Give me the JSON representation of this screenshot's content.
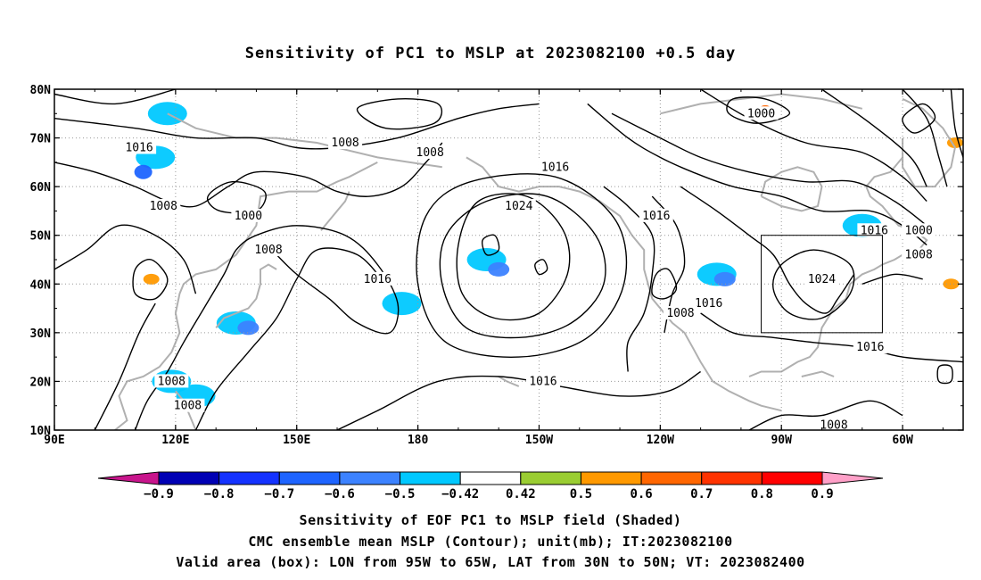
{
  "title": "Sensitivity of PC1 to MSLP at 2023082100 +0.5 day",
  "chart_data": {
    "type": "heatmap",
    "title": "Sensitivity of PC1 to MSLP at 2023082100 +0.5 day",
    "x_ticks": [
      "90E",
      "120E",
      "150E",
      "180",
      "150W",
      "120W",
      "90W",
      "60W"
    ],
    "y_ticks": [
      "10N",
      "20N",
      "30N",
      "40N",
      "50N",
      "60N",
      "70N",
      "80N"
    ],
    "xlim_lon_east": [
      90,
      315
    ],
    "ylim_lat": [
      10,
      80
    ],
    "grid": "dotted",
    "colorbar": {
      "bins": [
        "-0.9",
        "-0.8",
        "-0.7",
        "-0.6",
        "-0.5",
        "-0.42",
        "0.42",
        "0.5",
        "0.6",
        "0.7",
        "0.8",
        "0.9"
      ],
      "colors": [
        "#c8158c",
        "#0000b4",
        "#1432ff",
        "#1e64ff",
        "#3c82ff",
        "#00c8ff",
        "#ffffff",
        "#9acd32",
        "#ff9900",
        "#ff6600",
        "#ff3300",
        "#ff0000",
        "#ffa0c8"
      ]
    },
    "contour_labels": [
      {
        "text": "1016",
        "lon": 111,
        "lat": 68
      },
      {
        "text": "1008",
        "lon": 162,
        "lat": 69
      },
      {
        "text": "1008",
        "lon": 183,
        "lat": 67
      },
      {
        "text": "1016",
        "lon": 214,
        "lat": 64
      },
      {
        "text": "1000",
        "lon": 265,
        "lat": 75
      },
      {
        "text": "1008",
        "lon": 117,
        "lat": 56
      },
      {
        "text": "1000",
        "lon": 138,
        "lat": 54
      },
      {
        "text": "1024",
        "lon": 205,
        "lat": 56
      },
      {
        "text": "1016",
        "lon": 239,
        "lat": 54
      },
      {
        "text": "1008",
        "lon": 143,
        "lat": 47
      },
      {
        "text": "1016",
        "lon": 170,
        "lat": 41
      },
      {
        "text": "1016",
        "lon": 293,
        "lat": 51
      },
      {
        "text": "1000",
        "lon": 304,
        "lat": 51
      },
      {
        "text": "1008",
        "lon": 304,
        "lat": 46
      },
      {
        "text": "1024",
        "lon": 280,
        "lat": 41
      },
      {
        "text": "1016",
        "lon": 252,
        "lat": 36
      },
      {
        "text": "1008",
        "lon": 245,
        "lat": 34
      },
      {
        "text": "1016",
        "lon": 292,
        "lat": 27
      },
      {
        "text": "1008",
        "lon": 119,
        "lat": 20
      },
      {
        "text": "1008",
        "lon": 123,
        "lat": 15
      },
      {
        "text": "1016",
        "lon": 211,
        "lat": 20
      },
      {
        "text": "1008",
        "lon": 283,
        "lat": 11
      }
    ],
    "shaded_regions": [
      {
        "value": -0.5,
        "lon": 115,
        "lat": 66
      },
      {
        "value": -0.7,
        "lon": 112,
        "lat": 63
      },
      {
        "value": -0.5,
        "lon": 118,
        "lat": 75
      },
      {
        "value": -0.5,
        "lon": 197,
        "lat": 45
      },
      {
        "value": -0.6,
        "lon": 200,
        "lat": 43
      },
      {
        "value": -0.5,
        "lon": 176,
        "lat": 36
      },
      {
        "value": -0.5,
        "lon": 135,
        "lat": 32
      },
      {
        "value": -0.6,
        "lon": 138,
        "lat": 31
      },
      {
        "value": -0.5,
        "lon": 254,
        "lat": 42
      },
      {
        "value": -0.6,
        "lon": 256,
        "lat": 41
      },
      {
        "value": -0.5,
        "lon": 119,
        "lat": 20
      },
      {
        "value": -0.5,
        "lon": 125,
        "lat": 17
      },
      {
        "value": -0.5,
        "lon": 290,
        "lat": 52
      },
      {
        "value": 0.5,
        "lon": 265,
        "lat": 75
      },
      {
        "value": 0.6,
        "lon": 266,
        "lat": 76
      },
      {
        "value": 0.5,
        "lon": 114,
        "lat": 41
      },
      {
        "value": 0.5,
        "lon": 312,
        "lat": 40
      },
      {
        "value": 0.5,
        "lon": 313,
        "lat": 69
      }
    ],
    "valid_box": {
      "lon_min": 265,
      "lon_max": 295,
      "lat_min": 30,
      "lat_max": 50
    }
  },
  "footer": {
    "line1": "Sensitivity of EOF PC1 to MSLP field (Shaded)",
    "line2": "CMC ensemble mean MSLP (Contour); unit(mb); IT:2023082100",
    "line3": "Valid area (box): LON from 95W to 65W, LAT from 30N to 50N; VT: 2023082400"
  }
}
